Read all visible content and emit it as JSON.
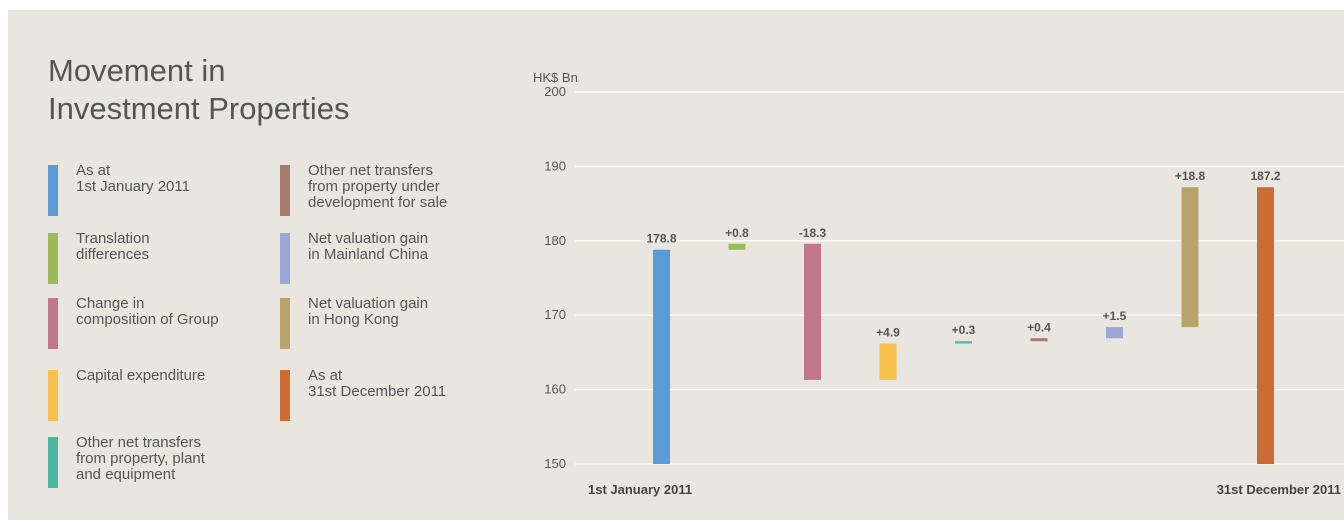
{
  "title": "Movement in\nInvestment Properties",
  "legend": [
    {
      "label": "As at\n1st January 2011",
      "color": "#5b9bd5"
    },
    {
      "label": "Translation\ndifferences",
      "color": "#9bbb59"
    },
    {
      "label": "Change in\ncomposition of Group",
      "color": "#c0778a"
    },
    {
      "label": "Capital expenditure",
      "color": "#f9c04b"
    },
    {
      "label": "Other net transfers\nfrom property, plant\nand equipment",
      "color": "#4db6a0"
    },
    {
      "label": "Other net transfers\nfrom property under\ndevelopment for sale",
      "color": "#a57b6e"
    },
    {
      "label": "Net valuation gain\nin Mainland China",
      "color": "#9aa6d8"
    },
    {
      "label": "Net valuation gain\nin Hong Kong",
      "color": "#b8a46a"
    },
    {
      "label": "As at\n31st December 2011",
      "color": "#cd6b34"
    }
  ],
  "chart_data": {
    "type": "bar",
    "variant": "waterfall",
    "ylabel": "HK$ Bn",
    "ylim": [
      150,
      200
    ],
    "yticks": [
      150,
      160,
      170,
      180,
      190,
      200
    ],
    "grid": true,
    "start_label": "1st January 2011",
    "end_label": "31st December 2011",
    "bars": [
      {
        "label": "178.8",
        "bottom": 150,
        "top": 178.8,
        "color": "#5b9bd5"
      },
      {
        "label": "+0.8",
        "bottom": 178.8,
        "top": 179.6,
        "color": "#9bbb59"
      },
      {
        "label": "-18.3",
        "bottom": 161.3,
        "top": 179.6,
        "color": "#c0778a"
      },
      {
        "label": "+4.9",
        "bottom": 161.3,
        "top": 166.2,
        "color": "#f9c04b"
      },
      {
        "label": "+0.3",
        "bottom": 166.2,
        "top": 166.5,
        "color": "#4db6a0"
      },
      {
        "label": "+0.4",
        "bottom": 166.5,
        "top": 166.9,
        "color": "#a57b6e"
      },
      {
        "label": "+1.5",
        "bottom": 166.9,
        "top": 168.4,
        "color": "#9aa6d8"
      },
      {
        "label": "+18.8",
        "bottom": 168.4,
        "top": 187.2,
        "color": "#b8a46a"
      },
      {
        "label": "187.2",
        "bottom": 150,
        "top": 187.2,
        "color": "#cd6b34"
      }
    ]
  }
}
